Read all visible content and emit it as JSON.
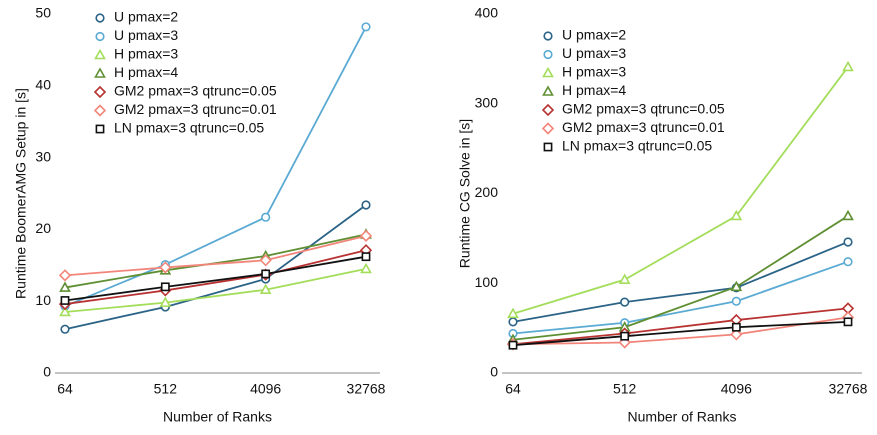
{
  "chart_data": [
    {
      "type": "line",
      "x_label": "Number of Ranks",
      "y_label": "Runtime BoomerAMG Setup in [s]",
      "categories": [
        "64",
        "512",
        "4096",
        "32768"
      ],
      "ylim": [
        0,
        50
      ],
      "yticks": [
        0,
        10,
        20,
        30,
        40,
        50
      ],
      "legend": "upper-left",
      "series": [
        {
          "name": "U pmax=2",
          "color": "#2b6387",
          "marker": "circle",
          "values": [
            6.1,
            9.2,
            13.1,
            23.4
          ]
        },
        {
          "name": "U pmax=3",
          "color": "#5aaad3",
          "marker": "circle",
          "values": [
            9.3,
            15.1,
            21.7,
            48.2
          ]
        },
        {
          "name": "H pmax=3",
          "color": "#a3dd5a",
          "marker": "triangle",
          "values": [
            8.5,
            9.8,
            11.6,
            14.5
          ]
        },
        {
          "name": "H pmax=4",
          "color": "#5f8f33",
          "marker": "triangle",
          "values": [
            11.9,
            14.3,
            16.3,
            19.3
          ]
        },
        {
          "name": "GM2 pmax=3 qtrunc=0.05",
          "color": "#b83232",
          "marker": "diamond",
          "values": [
            9.6,
            11.5,
            13.7,
            17.1
          ]
        },
        {
          "name": "GM2 pmax=3 qtrunc=0.01",
          "color": "#f2857a",
          "marker": "diamond",
          "values": [
            13.6,
            14.7,
            15.7,
            19.1
          ]
        },
        {
          "name": "LN pmax=3 qtrunc=0.05",
          "color": "#111111",
          "marker": "square",
          "values": [
            10.1,
            12.0,
            13.8,
            16.2
          ]
        }
      ]
    },
    {
      "type": "line",
      "x_label": "Number of Ranks",
      "y_label": "Runtime CG Solve in [s]",
      "categories": [
        "64",
        "512",
        "4096",
        "32768"
      ],
      "ylim": [
        0,
        400
      ],
      "yticks": [
        0,
        100,
        200,
        300,
        400
      ],
      "legend": "upper-left",
      "series": [
        {
          "name": "U pmax=2",
          "color": "#2b6387",
          "marker": "circle",
          "values": [
            57,
            79,
            95,
            146
          ]
        },
        {
          "name": "U pmax=3",
          "color": "#5aaad3",
          "marker": "circle",
          "values": [
            44,
            56,
            80,
            124
          ]
        },
        {
          "name": "H pmax=3",
          "color": "#a3dd5a",
          "marker": "triangle",
          "values": [
            66,
            104,
            175,
            341
          ]
        },
        {
          "name": "H pmax=4",
          "color": "#5f8f33",
          "marker": "triangle",
          "values": [
            37,
            51,
            96,
            175
          ]
        },
        {
          "name": "GM2 pmax=3 qtrunc=0.05",
          "color": "#b83232",
          "marker": "diamond",
          "values": [
            32,
            44,
            59,
            72
          ]
        },
        {
          "name": "GM2 pmax=3 qtrunc=0.01",
          "color": "#f2857a",
          "marker": "diamond",
          "values": [
            32,
            34,
            43,
            62
          ]
        },
        {
          "name": "LN pmax=3 qtrunc=0.05",
          "color": "#111111",
          "marker": "square",
          "values": [
            31,
            41,
            51,
            57
          ]
        }
      ]
    }
  ]
}
